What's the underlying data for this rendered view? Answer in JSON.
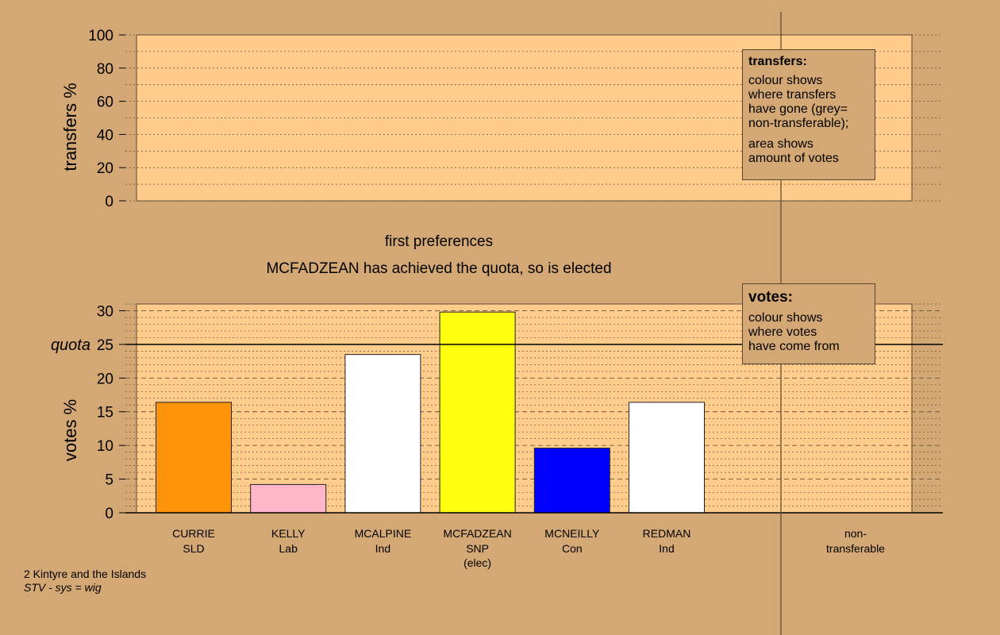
{
  "chart_data": {
    "type": "bar",
    "region": "2 Kintyre and the Islands",
    "system_note": "STV - sys = wig",
    "stage_label": "first preferences",
    "status_message": "MCFADZEAN has achieved the quota, so is elected",
    "quota": 25,
    "quota_label": "quota",
    "transfers_panel": {
      "ylabel": "transfers %",
      "ylim": [
        0,
        100
      ],
      "yticks": [
        0,
        20,
        40,
        60,
        80,
        100
      ],
      "legend": {
        "title": "transfers:",
        "lines_1": [
          "colour shows",
          "where transfers",
          "have gone (grey=",
          "non-transferable);"
        ],
        "lines_2": [
          "area shows",
          "amount of votes"
        ]
      }
    },
    "votes_panel": {
      "ylabel": "votes %",
      "ylim": [
        0,
        31
      ],
      "yticks": [
        0,
        5,
        10,
        15,
        20,
        25,
        30
      ],
      "legend": {
        "title": "votes:",
        "lines": [
          "colour shows",
          "where votes",
          "have come from"
        ]
      }
    },
    "candidates": [
      {
        "name": "CURRIE",
        "party": "SLD",
        "note": "",
        "value": 16.4,
        "color": "#FF9408"
      },
      {
        "name": "KELLY",
        "party": "Lab",
        "note": "",
        "value": 4.2,
        "color": "#FFB6C8"
      },
      {
        "name": "MCALPINE",
        "party": "Ind",
        "note": "",
        "value": 23.5,
        "color": "#FFFFFF"
      },
      {
        "name": "MCFADZEAN",
        "party": "SNP",
        "note": "(elec)",
        "value": 29.8,
        "color": "#FFFF10"
      },
      {
        "name": "MCNEILLY",
        "party": "Con",
        "note": "",
        "value": 9.6,
        "color": "#0000FF"
      },
      {
        "name": "REDMAN",
        "party": "Ind",
        "note": "",
        "value": 16.4,
        "color": "#FFFFFF"
      }
    ],
    "nontransferable_label": [
      "non-",
      "transferable"
    ],
    "colors": {
      "background": "#D4A874",
      "plot_fill": "#FFCC8C"
    }
  }
}
